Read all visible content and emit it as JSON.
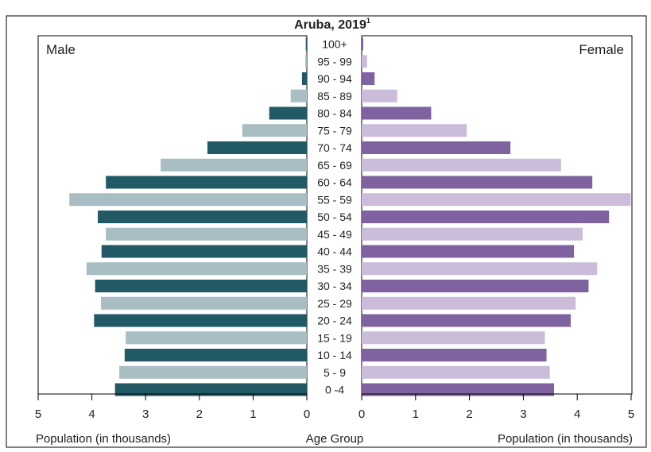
{
  "chart_data": {
    "type": "bar",
    "title": "Aruba, 2019",
    "title_superscript": "1",
    "left_panel_label": "Male",
    "right_panel_label": "Female",
    "xlabel_left": "Population (in thousands)",
    "xlabel_center": "Age Group",
    "xlabel_right": "Population (in thousands)",
    "xlim": [
      0,
      5
    ],
    "ticks": [
      "5",
      "4",
      "3",
      "2",
      "1",
      "0"
    ],
    "ticks_right": [
      "0",
      "1",
      "2",
      "3",
      "4",
      "5"
    ],
    "categories": [
      "100+",
      "95 - 99",
      "90 - 94",
      "85 - 89",
      "80 - 84",
      "75 - 79",
      "70 - 74",
      "65 - 69",
      "60 - 64",
      "55 - 59",
      "50 - 54",
      "45 - 49",
      "40 - 44",
      "35 - 39",
      "30 - 34",
      "25 - 29",
      "20 - 24",
      "15 - 19",
      "10 - 14",
      "5 - 9",
      "0 -4"
    ],
    "series": [
      {
        "name": "Male",
        "values": [
          0.02,
          0.03,
          0.09,
          0.3,
          0.7,
          1.2,
          1.85,
          2.72,
          3.74,
          4.42,
          3.89,
          3.74,
          3.82,
          4.1,
          3.94,
          3.83,
          3.96,
          3.37,
          3.39,
          3.49,
          3.57
        ]
      },
      {
        "name": "Female",
        "values": [
          0.03,
          0.1,
          0.24,
          0.66,
          1.29,
          1.95,
          2.76,
          3.7,
          4.28,
          4.99,
          4.59,
          4.1,
          3.94,
          4.37,
          4.21,
          3.97,
          3.88,
          3.4,
          3.43,
          3.49,
          3.57
        ]
      }
    ],
    "colors": {
      "male_dark": "#215965",
      "male_light": "#a8bec3",
      "female_dark": "#7e63a0",
      "female_light": "#cbbdda"
    },
    "grid": false,
    "legend": "none"
  }
}
